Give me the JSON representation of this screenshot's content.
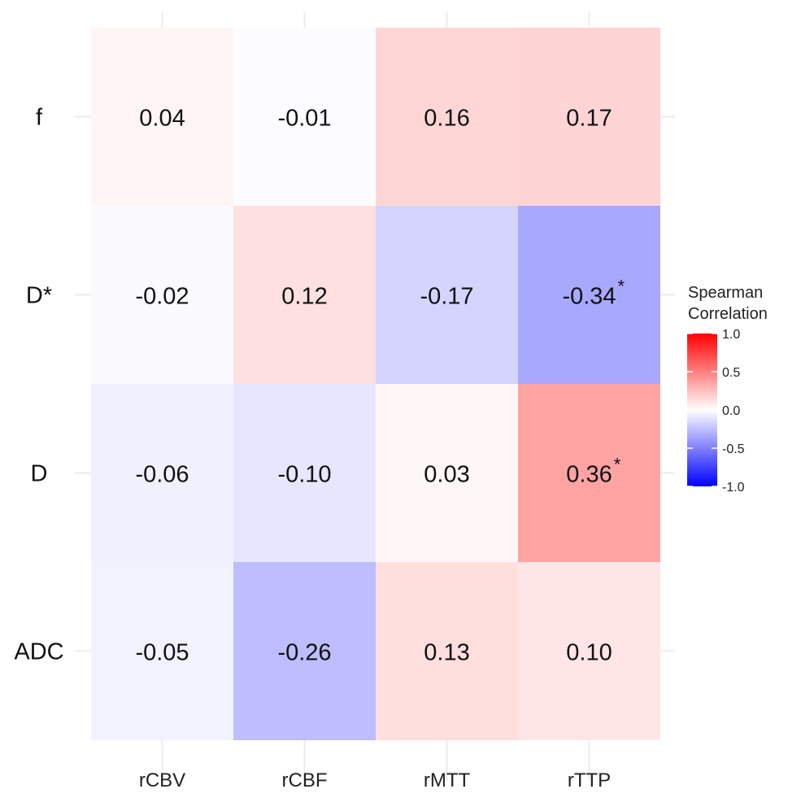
{
  "chart_data": {
    "type": "heatmap",
    "title": "",
    "xlabel": "",
    "ylabel": "",
    "columns": [
      "rCBV",
      "rCBF",
      "rMTT",
      "rTTP"
    ],
    "rows": [
      "f",
      "D*",
      "D",
      "ADC"
    ],
    "values": [
      [
        0.04,
        -0.01,
        0.16,
        0.17
      ],
      [
        -0.02,
        0.12,
        -0.17,
        -0.34
      ],
      [
        -0.06,
        -0.1,
        0.03,
        0.36
      ],
      [
        -0.05,
        -0.26,
        0.13,
        0.1
      ]
    ],
    "value_labels": [
      [
        "0.04",
        "-0.01",
        "0.16",
        "0.17"
      ],
      [
        "-0.02",
        "0.12",
        "-0.17",
        "-0.34"
      ],
      [
        "-0.06",
        "-0.10",
        "0.03",
        "0.36"
      ],
      [
        "-0.05",
        "-0.26",
        "0.13",
        "0.10"
      ]
    ],
    "significance_marker": "*",
    "significant": [
      [
        false,
        false,
        false,
        false
      ],
      [
        false,
        false,
        false,
        true
      ],
      [
        false,
        false,
        false,
        true
      ],
      [
        false,
        false,
        false,
        false
      ]
    ],
    "legend": {
      "title_line1": "Spearman",
      "title_line2": "Correlation",
      "range": [
        -1.0,
        1.0
      ],
      "ticks": [
        1.0,
        0.5,
        0.0,
        -0.5,
        -1.0
      ],
      "tick_labels": [
        "1.0",
        "0.5",
        "0.0",
        "-0.5",
        "-1.0"
      ],
      "position": "right"
    },
    "colors": {
      "negative": "#0000ff",
      "neutral": "#ffffff",
      "positive": "#ff0000"
    }
  }
}
